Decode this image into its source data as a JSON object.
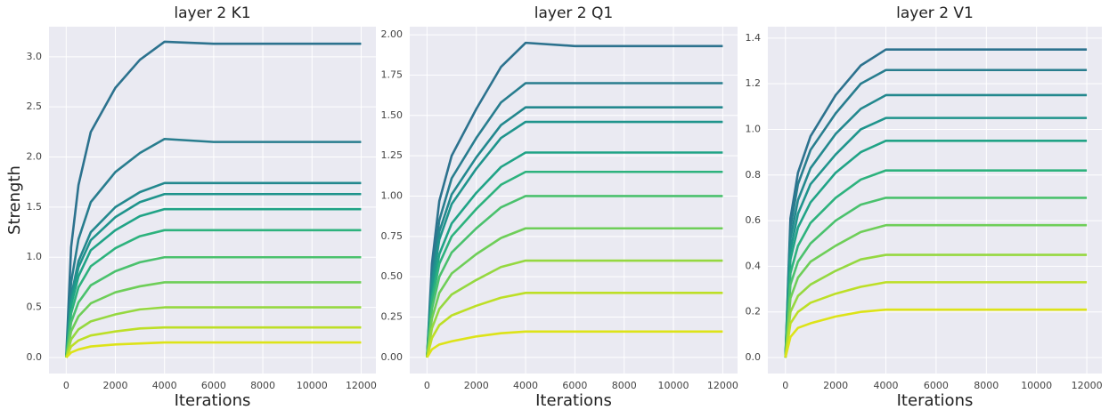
{
  "chart_data": [
    {
      "type": "line",
      "title": "layer 2 K1",
      "x_label": "Iterations",
      "y_label": "Strength",
      "grid": true,
      "x": [
        0,
        200,
        500,
        1000,
        2000,
        3000,
        4000,
        6000,
        8000,
        10000,
        12000
      ],
      "xlim": [
        -700,
        12600
      ],
      "ylim": [
        -0.16,
        3.3
      ],
      "xticks": [
        0,
        2000,
        4000,
        6000,
        8000,
        10000,
        12000
      ],
      "yticks": [
        {
          "value": 0,
          "label": "0.0"
        },
        0.5,
        {
          "value": 1,
          "label": "1.0"
        },
        1.5,
        {
          "value": 2,
          "label": "2.0"
        },
        2.5,
        {
          "value": 3,
          "label": "3.0"
        }
      ],
      "series": [
        {
          "color": "#2c728e",
          "values": [
            0,
            1.1,
            1.72,
            2.25,
            2.69,
            2.97,
            3.15,
            3.13,
            3.13,
            3.13,
            3.13
          ]
        },
        {
          "color": "#287d8e",
          "values": [
            0,
            0.75,
            1.18,
            1.55,
            1.85,
            2.04,
            2.18,
            2.15,
            2.15,
            2.15,
            2.15
          ]
        },
        {
          "color": "#23888e",
          "values": [
            0,
            0.61,
            0.96,
            1.25,
            1.5,
            1.65,
            1.74,
            1.74,
            1.74,
            1.74,
            1.74
          ]
        },
        {
          "color": "#1f948c",
          "values": [
            0,
            0.57,
            0.9,
            1.17,
            1.4,
            1.55,
            1.63,
            1.63,
            1.63,
            1.63,
            1.63
          ]
        },
        {
          "color": "#20a386",
          "values": [
            0,
            0.52,
            0.81,
            1.07,
            1.27,
            1.41,
            1.48,
            1.48,
            1.48,
            1.48,
            1.48
          ]
        },
        {
          "color": "#2db27d",
          "values": [
            0,
            0.44,
            0.7,
            0.91,
            1.09,
            1.21,
            1.27,
            1.27,
            1.27,
            1.27,
            1.27
          ]
        },
        {
          "color": "#4ac16d",
          "values": [
            0,
            0.35,
            0.55,
            0.72,
            0.86,
            0.95,
            1.0,
            1.0,
            1.0,
            1.0,
            1.0
          ]
        },
        {
          "color": "#6ece58",
          "values": [
            0,
            0.26,
            0.41,
            0.54,
            0.65,
            0.71,
            0.75,
            0.75,
            0.75,
            0.75,
            0.75
          ]
        },
        {
          "color": "#95d840",
          "values": [
            0,
            0.18,
            0.28,
            0.36,
            0.43,
            0.48,
            0.5,
            0.5,
            0.5,
            0.5,
            0.5
          ]
        },
        {
          "color": "#bddf26",
          "values": [
            0,
            0.11,
            0.17,
            0.22,
            0.26,
            0.29,
            0.3,
            0.3,
            0.3,
            0.3,
            0.3
          ]
        },
        {
          "color": "#dde318",
          "values": [
            0,
            0.05,
            0.08,
            0.11,
            0.13,
            0.14,
            0.15,
            0.15,
            0.15,
            0.15,
            0.15
          ]
        }
      ]
    },
    {
      "type": "line",
      "title": "layer 2 Q1",
      "x_label": "Iterations",
      "grid": true,
      "x": [
        0,
        200,
        500,
        1000,
        2000,
        3000,
        4000,
        6000,
        8000,
        10000,
        12000
      ],
      "xlim": [
        -700,
        12600
      ],
      "ylim": [
        -0.1,
        2.05
      ],
      "xticks": [
        0,
        2000,
        4000,
        6000,
        8000,
        10000,
        12000
      ],
      "yticks": [
        {
          "value": 0,
          "label": "0.00"
        },
        0.25,
        {
          "value": 0.5,
          "label": "0.50"
        },
        0.75,
        {
          "value": 1,
          "label": "1.00"
        },
        1.25,
        {
          "value": 1.5,
          "label": "1.50"
        },
        1.75,
        {
          "value": 2,
          "label": "2.00"
        }
      ],
      "series": [
        {
          "color": "#2c728e",
          "values": [
            0,
            0.58,
            0.97,
            1.25,
            1.54,
            1.8,
            1.95,
            1.93,
            1.93,
            1.93,
            1.93
          ]
        },
        {
          "color": "#287d8e",
          "values": [
            0,
            0.51,
            0.85,
            1.11,
            1.36,
            1.58,
            1.7,
            1.7,
            1.7,
            1.7,
            1.7
          ]
        },
        {
          "color": "#23888e",
          "values": [
            0,
            0.47,
            0.78,
            1.01,
            1.24,
            1.44,
            1.55,
            1.55,
            1.55,
            1.55,
            1.55
          ]
        },
        {
          "color": "#1f948c",
          "values": [
            0,
            0.44,
            0.73,
            0.95,
            1.17,
            1.36,
            1.46,
            1.46,
            1.46,
            1.46,
            1.46
          ]
        },
        {
          "color": "#20a386",
          "values": [
            0,
            0.38,
            0.64,
            0.83,
            1.02,
            1.18,
            1.27,
            1.27,
            1.27,
            1.27,
            1.27
          ]
        },
        {
          "color": "#2db27d",
          "values": [
            0,
            0.35,
            0.58,
            0.75,
            0.92,
            1.07,
            1.15,
            1.15,
            1.15,
            1.15,
            1.15
          ]
        },
        {
          "color": "#4ac16d",
          "values": [
            0,
            0.3,
            0.5,
            0.65,
            0.8,
            0.93,
            1.0,
            1.0,
            1.0,
            1.0,
            1.0
          ]
        },
        {
          "color": "#6ece58",
          "values": [
            0,
            0.24,
            0.4,
            0.52,
            0.64,
            0.74,
            0.8,
            0.8,
            0.8,
            0.8,
            0.8
          ]
        },
        {
          "color": "#95d840",
          "values": [
            0,
            0.18,
            0.3,
            0.39,
            0.48,
            0.56,
            0.6,
            0.6,
            0.6,
            0.6,
            0.6
          ]
        },
        {
          "color": "#bddf26",
          "values": [
            0,
            0.12,
            0.2,
            0.26,
            0.32,
            0.37,
            0.4,
            0.4,
            0.4,
            0.4,
            0.4
          ]
        },
        {
          "color": "#dde318",
          "values": [
            0,
            0.05,
            0.08,
            0.1,
            0.13,
            0.15,
            0.16,
            0.16,
            0.16,
            0.16,
            0.16
          ]
        }
      ]
    },
    {
      "type": "line",
      "title": "layer 2 V1",
      "x_label": "Iterations",
      "grid": true,
      "x": [
        0,
        200,
        500,
        1000,
        2000,
        3000,
        4000,
        6000,
        8000,
        10000,
        12000
      ],
      "xlim": [
        -700,
        12600
      ],
      "ylim": [
        -0.07,
        1.45
      ],
      "xticks": [
        0,
        2000,
        4000,
        6000,
        8000,
        10000,
        12000
      ],
      "yticks": [
        {
          "value": 0,
          "label": "0.0"
        },
        0.2,
        0.4,
        0.6,
        0.8,
        {
          "value": 1,
          "label": "1.0"
        },
        1.2,
        1.4
      ],
      "series": [
        {
          "color": "#2c728e",
          "values": [
            0,
            0.61,
            0.81,
            0.97,
            1.15,
            1.28,
            1.35,
            1.35,
            1.35,
            1.35,
            1.35
          ]
        },
        {
          "color": "#287d8e",
          "values": [
            0,
            0.57,
            0.76,
            0.91,
            1.07,
            1.2,
            1.26,
            1.26,
            1.26,
            1.26,
            1.26
          ]
        },
        {
          "color": "#23888e",
          "values": [
            0,
            0.52,
            0.69,
            0.83,
            0.98,
            1.09,
            1.15,
            1.15,
            1.15,
            1.15,
            1.15
          ]
        },
        {
          "color": "#1f948c",
          "values": [
            0,
            0.47,
            0.63,
            0.76,
            0.89,
            1.0,
            1.05,
            1.05,
            1.05,
            1.05,
            1.05
          ]
        },
        {
          "color": "#20a386",
          "values": [
            0,
            0.43,
            0.57,
            0.68,
            0.81,
            0.9,
            0.95,
            0.95,
            0.95,
            0.95,
            0.95
          ]
        },
        {
          "color": "#2db27d",
          "values": [
            0,
            0.37,
            0.49,
            0.59,
            0.7,
            0.78,
            0.82,
            0.82,
            0.82,
            0.82,
            0.82
          ]
        },
        {
          "color": "#4ac16d",
          "values": [
            0,
            0.32,
            0.42,
            0.5,
            0.6,
            0.67,
            0.7,
            0.7,
            0.7,
            0.7,
            0.7
          ]
        },
        {
          "color": "#6ece58",
          "values": [
            0,
            0.26,
            0.35,
            0.42,
            0.49,
            0.55,
            0.58,
            0.58,
            0.58,
            0.58,
            0.58
          ]
        },
        {
          "color": "#95d840",
          "values": [
            0,
            0.2,
            0.27,
            0.32,
            0.38,
            0.43,
            0.45,
            0.45,
            0.45,
            0.45,
            0.45
          ]
        },
        {
          "color": "#bddf26",
          "values": [
            0,
            0.15,
            0.2,
            0.24,
            0.28,
            0.31,
            0.33,
            0.33,
            0.33,
            0.33,
            0.33
          ]
        },
        {
          "color": "#dde318",
          "values": [
            0,
            0.09,
            0.13,
            0.15,
            0.18,
            0.2,
            0.21,
            0.21,
            0.21,
            0.21,
            0.21
          ]
        }
      ]
    }
  ]
}
